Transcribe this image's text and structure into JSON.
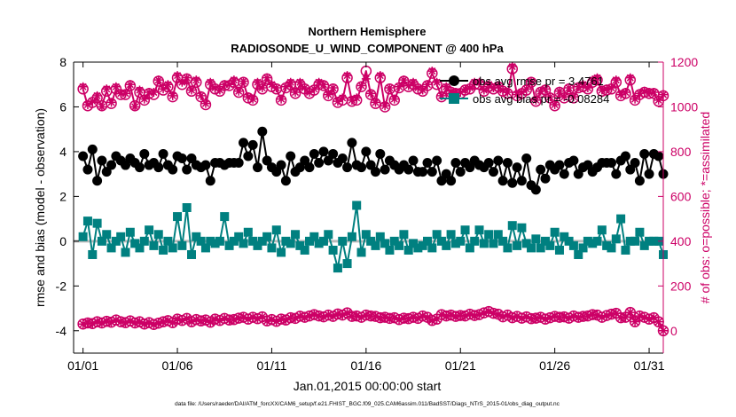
{
  "chart_data": {
    "type": "line",
    "title": "Northern Hemisphere",
    "subtitle": "RADIOSONDE_U_WIND_COMPONENT @ 400 hPa",
    "xlabel": "Jan.01,2015 00:00:00 start",
    "ylabel": "rmse and bias (model - observation)",
    "ylabel_right": "# of obs: o=possible; *=assimilated",
    "footer": "data file: /Users/raeder/DAI/ATM_forcXX/CAM6_setup/f.e21.FHIST_BGC.f09_025.CAM6assim.011/BadSST/Diags_NTrS_2015-01/obs_diag_output.nc",
    "xlim": [
      0.5,
      31.75
    ],
    "ylim": [
      -5,
      8
    ],
    "ylim_right": [
      -100,
      1200
    ],
    "x_ticks": [
      1,
      6,
      11,
      16,
      21,
      26,
      31
    ],
    "x_tick_labels": [
      "01/01",
      "01/06",
      "01/11",
      "01/16",
      "01/21",
      "01/26",
      "01/31"
    ],
    "y_ticks": [
      -4,
      -2,
      0,
      2,
      4,
      6,
      8
    ],
    "y_ticks_right": [
      0,
      200,
      400,
      600,
      800,
      1000,
      1200
    ],
    "zero_line": 0,
    "legend": {
      "position": "top-right",
      "entries": [
        {
          "label": "obs avg rmse pr = 3.4761",
          "color": "#000000"
        },
        {
          "label": "obs avg bias pr = -0.08284",
          "color": "#008080"
        }
      ]
    },
    "x": [
      1.0,
      1.25,
      1.5,
      1.75,
      2.0,
      2.25,
      2.5,
      2.75,
      3.0,
      3.25,
      3.5,
      3.75,
      4.0,
      4.25,
      4.5,
      4.75,
      5.0,
      5.25,
      5.5,
      5.75,
      6.0,
      6.25,
      6.5,
      6.75,
      7.0,
      7.25,
      7.5,
      7.75,
      8.0,
      8.25,
      8.5,
      8.75,
      9.0,
      9.25,
      9.5,
      9.75,
      10.0,
      10.25,
      10.5,
      10.75,
      11.0,
      11.25,
      11.5,
      11.75,
      12.0,
      12.25,
      12.5,
      12.75,
      13.0,
      13.25,
      13.5,
      13.75,
      14.0,
      14.25,
      14.5,
      14.75,
      15.0,
      15.25,
      15.5,
      15.75,
      16.0,
      16.25,
      16.5,
      16.75,
      17.0,
      17.25,
      17.5,
      17.75,
      18.0,
      18.25,
      18.5,
      18.75,
      19.0,
      19.25,
      19.5,
      19.75,
      20.0,
      20.25,
      20.5,
      20.75,
      21.0,
      21.25,
      21.5,
      21.75,
      22.0,
      22.25,
      22.5,
      22.75,
      23.0,
      23.25,
      23.5,
      23.75,
      24.0,
      24.25,
      24.5,
      24.75,
      25.0,
      25.25,
      25.5,
      25.75,
      26.0,
      26.25,
      26.5,
      26.75,
      27.0,
      27.25,
      27.5,
      27.75,
      28.0,
      28.25,
      28.5,
      28.75,
      29.0,
      29.25,
      29.5,
      29.75,
      30.0,
      30.25,
      30.5,
      30.75,
      31.0,
      31.25,
      31.5,
      31.75
    ],
    "series": [
      {
        "name": "obs avg rmse pr = 3.4761",
        "axis": "left",
        "color": "#000000",
        "marker": "filled-circle",
        "values": [
          3.8,
          3.2,
          4.1,
          2.7,
          3.6,
          3.1,
          3.4,
          3.8,
          3.6,
          3.4,
          3.7,
          3.5,
          3.3,
          3.9,
          3.4,
          3.5,
          3.3,
          3.9,
          3.4,
          3.2,
          3.8,
          3.7,
          3.2,
          3.7,
          3.4,
          3.3,
          3.4,
          2.7,
          3.5,
          3.5,
          3.4,
          3.5,
          3.5,
          3.5,
          4.4,
          3.8,
          4.3,
          3.3,
          4.9,
          3.6,
          3.3,
          3.1,
          3.4,
          2.7,
          3.8,
          3.1,
          3.3,
          3.6,
          3.3,
          3.9,
          3.5,
          4.0,
          3.6,
          3.9,
          3.5,
          3.7,
          3.3,
          4.4,
          3.4,
          3.3,
          4.0,
          3.4,
          3.1,
          3.9,
          3.2,
          3.6,
          3.4,
          3.2,
          3.4,
          3.2,
          3.6,
          3.1,
          3.1,
          3.5,
          3.1,
          3.6,
          2.7,
          3.0,
          2.7,
          3.5,
          3.1,
          3.5,
          3.3,
          3.6,
          3.4,
          3.3,
          3.5,
          3.1,
          3.6,
          2.7,
          3.5,
          2.6,
          3.3,
          2.7,
          3.7,
          2.5,
          2.3,
          3.2,
          2.8,
          3.4,
          3.2,
          3.4,
          3.0,
          3.5,
          3.6,
          3.0,
          3.3,
          3.4,
          3.1,
          3.3,
          3.5,
          3.5,
          3.5,
          3.0,
          3.6,
          3.8,
          3.2,
          3.5,
          2.7,
          3.9,
          3.0,
          3.9,
          3.8,
          3.0
        ]
      },
      {
        "name": "obs avg bias pr = -0.08284",
        "axis": "left",
        "color": "#008080",
        "marker": "filled-square",
        "values": [
          0.2,
          0.9,
          -0.6,
          0.8,
          0.0,
          0.3,
          -0.3,
          0.0,
          0.2,
          -0.5,
          0.4,
          -0.1,
          -0.3,
          0.0,
          0.5,
          -0.2,
          0.3,
          -0.4,
          0.0,
          -0.3,
          1.1,
          -0.2,
          1.5,
          -0.6,
          0.2,
          0.0,
          -0.3,
          0.0,
          -0.1,
          0.0,
          1.1,
          -0.2,
          0.0,
          0.2,
          -0.1,
          0.4,
          0.0,
          -0.2,
          0.0,
          0.2,
          -0.3,
          0.5,
          -0.5,
          0.0,
          -0.1,
          0.3,
          -0.2,
          -0.4,
          0.0,
          0.2,
          -0.1,
          0.0,
          0.3,
          -0.4,
          -1.2,
          0.0,
          -1.0,
          0.2,
          1.6,
          -0.5,
          0.3,
          0.0,
          -0.2,
          0.2,
          -0.1,
          -0.4,
          0.0,
          -0.2,
          0.3,
          -0.4,
          -0.1,
          -0.3,
          -0.2,
          0.0,
          -0.3,
          0.3,
          0.0,
          -0.2,
          0.3,
          -0.1,
          0.0,
          0.5,
          -0.3,
          0.0,
          0.5,
          -0.1,
          0.3,
          -0.1,
          0.3,
          0.0,
          -0.3,
          0.7,
          -0.2,
          0.6,
          -0.1,
          -0.3,
          0.1,
          -0.3,
          0.0,
          -0.2,
          0.4,
          -0.4,
          0.2,
          0.0,
          -0.2,
          -0.6,
          -0.3,
          0.0,
          -0.1,
          0.0,
          0.5,
          -0.2,
          -0.3,
          0.1,
          1.0,
          -0.4,
          0.0,
          0.0,
          0.4,
          -0.2,
          0.0,
          0.0,
          0.0,
          -0.6
        ]
      },
      {
        "name": "# of obs possible",
        "axis": "right",
        "color": "#cc0066",
        "marker": "open-circle",
        "values": [
          1080,
          1005,
          1020,
          1040,
          1005,
          1070,
          1015,
          1080,
          1055,
          1055,
          1095,
          1005,
          1065,
          1030,
          1060,
          1055,
          1115,
          1075,
          1090,
          1045,
          1130,
          1100,
          1125,
          1070,
          1110,
          1045,
          1010,
          1100,
          1080,
          1070,
          1095,
          1095,
          1110,
          1065,
          1110,
          1040,
          1030,
          1100,
          1080,
          1125,
          1090,
          1080,
          1030,
          1085,
          1100,
          1060,
          1100,
          1080,
          1060,
          1075,
          1100,
          1095,
          1050,
          1080,
          1020,
          1030,
          1130,
          1025,
          1030,
          1090,
          1160,
          1055,
          1015,
          1130,
          1000,
          1080,
          1030,
          1085,
          1115,
          1090,
          1100,
          1080,
          1070,
          1095,
          1150,
          1100,
          1045,
          1080,
          1065,
          1060,
          1060,
          1075,
          1080,
          1100,
          1100,
          1070,
          1090,
          1080,
          1090,
          1070,
          1060,
          1170,
          1050,
          1060,
          1075,
          1110,
          1025,
          1065,
          1075,
          1040,
          1005,
          1065,
          1040,
          1080,
          1040,
          1085,
          1090,
          1080,
          1110,
          1120,
          1070,
          1075,
          1080,
          1110,
          1050,
          1060,
          1120,
          1030,
          1055,
          1065,
          1060,
          1060,
          1025,
          1050
        ]
      },
      {
        "name": "# of obs assimilated",
        "axis": "right",
        "color": "#cc0066",
        "marker": "asterisk",
        "values": [
          1090,
          1010,
          1025,
          1050,
          1000,
          1080,
          1020,
          1090,
          1060,
          1060,
          1100,
          1000,
          1075,
          1035,
          1065,
          1065,
          1120,
          1080,
          1100,
          1050,
          1140,
          1110,
          1130,
          1075,
          1120,
          1050,
          1015,
          1110,
          1085,
          1075,
          1100,
          1100,
          1120,
          1070,
          1115,
          1045,
          1035,
          1110,
          1085,
          1130,
          1100,
          1085,
          1035,
          1090,
          1110,
          1065,
          1110,
          1085,
          1065,
          1080,
          1110,
          1100,
          1055,
          1085,
          1025,
          1040,
          1140,
          1030,
          1040,
          1095,
          1125,
          1060,
          1020,
          1140,
          1005,
          1085,
          1035,
          1090,
          1120,
          1095,
          1110,
          1085,
          1075,
          1100,
          1160,
          1110,
          1050,
          1090,
          1070,
          1065,
          1065,
          1080,
          1085,
          1110,
          1110,
          1075,
          1100,
          1085,
          1095,
          1075,
          1065,
          1180,
          1055,
          1065,
          1080,
          1115,
          1030,
          1070,
          1080,
          1045,
          1010,
          1070,
          1045,
          1085,
          1045,
          1090,
          1100,
          1085,
          1120,
          1130,
          1075,
          1080,
          1085,
          1120,
          1055,
          1065,
          1130,
          1035,
          1060,
          1070,
          1065,
          1065,
          1030,
          1055
        ]
      },
      {
        "name": "# of obs possible (lower)",
        "axis": "right",
        "color": "#cc0066",
        "marker": "open-circle",
        "values": [
          30,
          35,
          32,
          40,
          35,
          42,
          38,
          48,
          40,
          36,
          44,
          35,
          40,
          30,
          36,
          28,
          34,
          40,
          45,
          36,
          52,
          46,
          55,
          40,
          50,
          44,
          48,
          38,
          52,
          46,
          55,
          48,
          50,
          56,
          60,
          52,
          60,
          54,
          62,
          44,
          50,
          42,
          52,
          48,
          58,
          55,
          65,
          60,
          66,
          72,
          66,
          62,
          70,
          64,
          75,
          70,
          80,
          64,
          66,
          60,
          70,
          66,
          64,
          58,
          60,
          55,
          58,
          50,
          56,
          54,
          60,
          55,
          66,
          60,
          46,
          52,
          72,
          66,
          70,
          64,
          68,
          66,
          74,
          68,
          72,
          80,
          86,
          78,
          74,
          62,
          70,
          58,
          64,
          56,
          62,
          54,
          56,
          60,
          52,
          58,
          64,
          60,
          62,
          56,
          66,
          60,
          64,
          66,
          72,
          70,
          60,
          68,
          74,
          78,
          58,
          60,
          82,
          40,
          66,
          60,
          52,
          58,
          40,
          0
        ]
      },
      {
        "name": "# of obs assimilated (lower)",
        "axis": "right",
        "color": "#cc0066",
        "marker": "asterisk",
        "values": [
          30,
          35,
          32,
          40,
          35,
          42,
          38,
          48,
          40,
          36,
          44,
          35,
          40,
          30,
          36,
          28,
          34,
          40,
          45,
          36,
          52,
          46,
          55,
          40,
          50,
          44,
          48,
          38,
          52,
          46,
          55,
          48,
          50,
          56,
          60,
          52,
          60,
          54,
          62,
          44,
          50,
          42,
          52,
          48,
          58,
          55,
          65,
          60,
          66,
          72,
          66,
          62,
          70,
          64,
          75,
          70,
          80,
          64,
          66,
          60,
          70,
          66,
          64,
          58,
          60,
          55,
          58,
          50,
          56,
          54,
          60,
          55,
          66,
          60,
          46,
          52,
          72,
          66,
          70,
          64,
          68,
          66,
          74,
          68,
          72,
          80,
          86,
          78,
          74,
          62,
          70,
          58,
          64,
          56,
          62,
          54,
          56,
          60,
          52,
          58,
          64,
          60,
          62,
          56,
          66,
          60,
          64,
          66,
          72,
          70,
          60,
          68,
          74,
          78,
          58,
          60,
          82,
          40,
          66,
          60,
          52,
          58,
          40,
          0
        ]
      }
    ]
  }
}
